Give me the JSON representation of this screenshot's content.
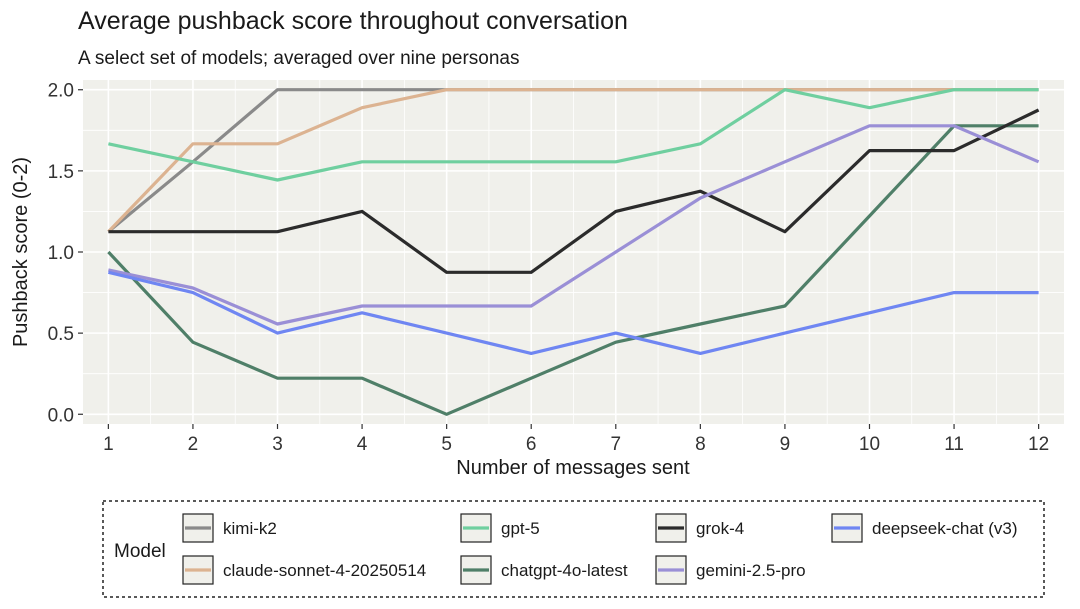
{
  "chart_data": {
    "type": "line",
    "title": "Average pushback score throughout conversation",
    "subtitle": "A select set of models; averaged over nine personas",
    "xlabel": "Number of messages sent",
    "ylabel": "Pushback score (0-2)",
    "x": [
      1,
      2,
      3,
      4,
      5,
      6,
      7,
      8,
      9,
      10,
      11,
      12
    ],
    "xlim": [
      0.7,
      12.3
    ],
    "ylim": [
      -0.06,
      2.06
    ],
    "yticks": [
      0.0,
      0.5,
      1.0,
      1.5,
      2.0
    ],
    "ytick_labels": [
      "0.0",
      "0.5",
      "1.0",
      "1.5",
      "2.0"
    ],
    "grid": true,
    "legend_title": "Model",
    "legend_position": "bottom",
    "series": [
      {
        "name": "kimi-k2",
        "color": "#8a8a8a",
        "values": [
          1.125,
          1.556,
          2.0,
          2.0,
          2.0,
          2.0,
          2.0,
          2.0,
          2.0,
          2.0,
          2.0,
          2.0
        ]
      },
      {
        "name": "claude-sonnet-4-20250514",
        "color": "#dcb391",
        "values": [
          1.125,
          1.667,
          1.667,
          1.889,
          2.0,
          2.0,
          2.0,
          2.0,
          2.0,
          2.0,
          2.0,
          2.0
        ]
      },
      {
        "name": "gpt-5",
        "color": "#6fcf9f",
        "values": [
          1.667,
          1.556,
          1.444,
          1.556,
          1.556,
          1.556,
          1.556,
          1.667,
          2.0,
          1.889,
          2.0,
          2.0
        ]
      },
      {
        "name": "chatgpt-4o-latest",
        "color": "#4f7f68",
        "values": [
          1.0,
          0.444,
          0.222,
          0.222,
          0.0,
          0.222,
          0.444,
          0.556,
          0.667,
          1.222,
          1.778,
          1.778
        ]
      },
      {
        "name": "grok-4",
        "color": "#2b2b2b",
        "values": [
          1.125,
          1.125,
          1.125,
          1.25,
          0.875,
          0.875,
          1.25,
          1.375,
          1.125,
          1.625,
          1.625,
          1.875
        ]
      },
      {
        "name": "gemini-2.5-pro",
        "color": "#9a8fd6",
        "values": [
          0.889,
          0.778,
          0.556,
          0.667,
          0.667,
          0.667,
          1.0,
          1.333,
          1.556,
          1.778,
          1.778,
          1.556
        ]
      },
      {
        "name": "deepseek-chat (v3)",
        "color": "#6f86f2",
        "values": [
          0.875,
          0.75,
          0.5,
          0.625,
          0.5,
          0.375,
          0.5,
          0.375,
          0.5,
          0.625,
          0.75,
          0.75
        ]
      }
    ]
  }
}
